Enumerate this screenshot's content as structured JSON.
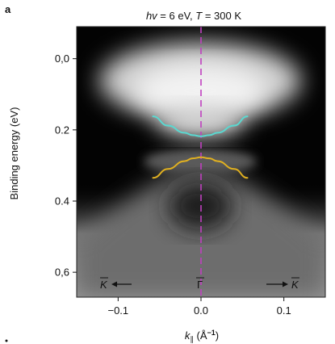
{
  "panel_label": "a",
  "chart_data": {
    "type": "heatmap",
    "title": "hv = 6 eV, T = 300 K",
    "title_parts": {
      "hv": "hv",
      "hv_rest": " = 6 eV, ",
      "T": "T",
      "T_rest": " = 300 K"
    },
    "xlabel": "k∥ (Å⁻¹)",
    "xlabel_parts": {
      "k": "k",
      "sub": "∥",
      "unit": " (Å",
      "sup": "−1",
      "close": ")"
    },
    "ylabel": "Binding energy (eV)",
    "xlim": [
      -0.15,
      0.15
    ],
    "ylim": [
      -0.09,
      0.67
    ],
    "y_inverted": true,
    "xticks": [
      {
        "v": -0.1,
        "label": "−0.1"
      },
      {
        "v": 0.0,
        "label": "0.0"
      },
      {
        "v": 0.1,
        "label": "0.1"
      }
    ],
    "yticks": [
      {
        "v": 0.0,
        "label": "0,0"
      },
      {
        "v": 0.2,
        "label": "0.2"
      },
      {
        "v": 0.4,
        "label": "0.4"
      },
      {
        "v": 0.6,
        "label": "0,6"
      }
    ],
    "colormap": "grayscale",
    "dirac_point_line": {
      "x": 0.0,
      "color": "#c040c0",
      "style": "dashed"
    },
    "bands": [
      {
        "name": "upper-band",
        "color": "#5ad8d0",
        "x": [
          -0.058,
          -0.04,
          -0.02,
          -0.01,
          0.0,
          0.01,
          0.02,
          0.04,
          0.056
        ],
        "y": [
          0.162,
          0.188,
          0.208,
          0.215,
          0.218,
          0.215,
          0.208,
          0.188,
          0.162
        ]
      },
      {
        "name": "lower-band",
        "color": "#e0b020",
        "x": [
          -0.058,
          -0.04,
          -0.02,
          -0.01,
          0.0,
          0.01,
          0.02,
          0.04,
          0.056
        ],
        "y": [
          0.335,
          0.31,
          0.288,
          0.28,
          0.277,
          0.28,
          0.288,
          0.31,
          0.335
        ]
      }
    ],
    "annotations": [
      {
        "name": "k-bar-left",
        "label": "K",
        "arrow": "left"
      },
      {
        "name": "gamma-bar",
        "label": "Γ"
      },
      {
        "name": "k-bar-right",
        "label": "K",
        "arrow": "right"
      }
    ]
  }
}
